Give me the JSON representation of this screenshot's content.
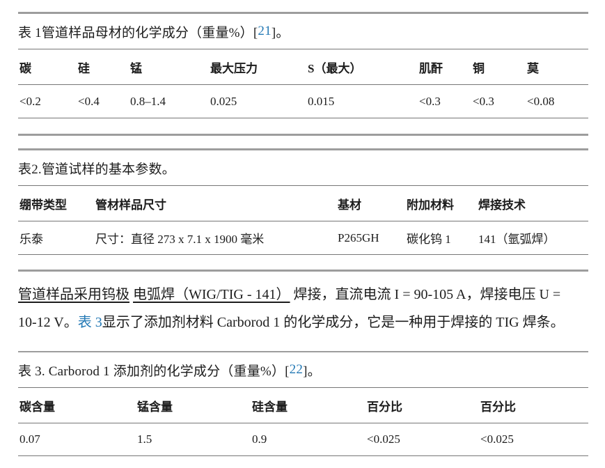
{
  "colors": {
    "link": "#2479b5"
  },
  "table1": {
    "caption_text": "表 1管道样品母材的化学成分（重量%）[ ",
    "caption_ref": "21",
    "caption_suffix": " ]。",
    "headers": [
      "碳",
      "硅",
      "锰",
      "最大压力",
      "S（最大）",
      "肌酐",
      "铜",
      "莫"
    ],
    "values": [
      "<0.2",
      "<0.4",
      "0.8–1.4",
      "0.025",
      "0.015",
      "<0.3",
      "<0.3",
      "<0.08"
    ]
  },
  "table2": {
    "caption": "表2.管道试样的基本参数。",
    "headers": [
      "绷带类型",
      "管材样品尺寸",
      "基材",
      "附加材料",
      "焊接技术"
    ],
    "values": [
      "乐泰",
      "尺寸：直径 273 x 7.1 x 1900 毫米",
      "P265GH",
      "碳化钨 1",
      "141（氩弧焊）"
    ]
  },
  "paragraph": {
    "underline1": "管道样品采用钨极",
    "gap": " ",
    "underline2": "电弧焊（WIG/TIG - 141）",
    "text1": " 焊接，直流电流 I = 90-105 A，焊接电压 U =",
    "text2": "10-12 V。",
    "link": "表 3",
    "text3": "显示了添加剂材料 Carborod 1 的化学成分，它是一种用于焊接的 TIG 焊条。"
  },
  "table3": {
    "caption_text": "表 3. Carborod 1 添加剂的化学成分（重量%）[ ",
    "caption_ref": "22",
    "caption_suffix": " ]。",
    "headers": [
      "碳含量",
      "锰含量",
      "硅含量",
      "百分比",
      "百分比"
    ],
    "values": [
      "0.07",
      "1.5",
      "0.9",
      "<0.025",
      "<0.025"
    ]
  }
}
